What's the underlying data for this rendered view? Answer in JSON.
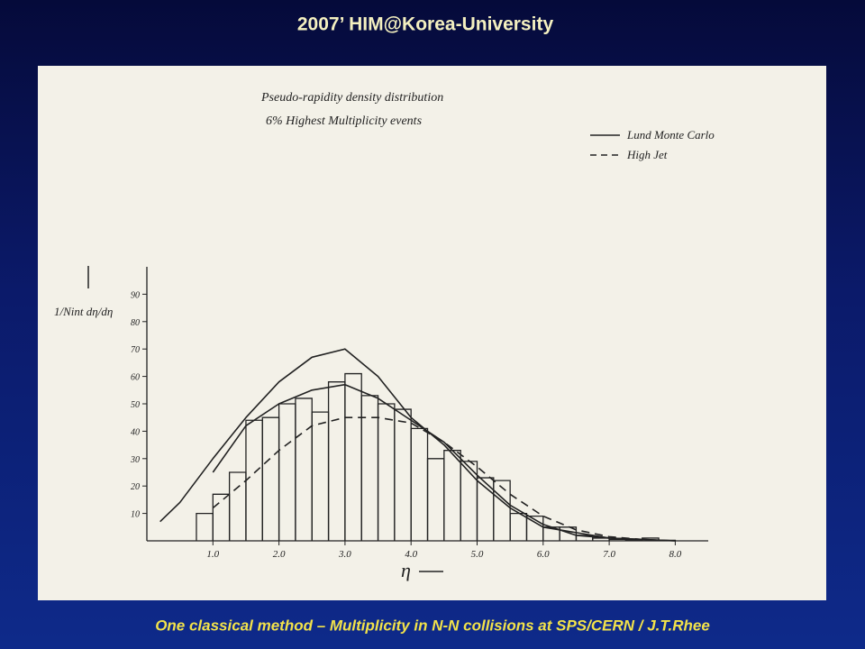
{
  "header": {
    "title": "2007’ HIM@Korea-University"
  },
  "footer": {
    "caption": "One classical method – Multiplicity in N-N collisions at SPS/CERN / J.T.Rhee"
  },
  "chart_data": {
    "type": "line",
    "title": "Pseudo-rapidity density distribution",
    "subtitle": "6% Highest Multiplicity events",
    "x_label": "η",
    "y_label": "1/Nint dη/dη",
    "x": [
      0.2,
      0.5,
      1,
      1.5,
      2,
      2.5,
      3,
      3.5,
      4,
      4.5,
      5,
      5.5,
      6,
      6.5,
      7,
      7.5,
      8
    ],
    "series": [
      {
        "color": "#222",
        "dash": false,
        "values": [
          7,
          14,
          30,
          45,
          58,
          67,
          70,
          60,
          45,
          35,
          22,
          12,
          5,
          3,
          1,
          0.5,
          0
        ]
      },
      {
        "name": "Lund Monte Carlo",
        "color": "#222",
        "dash": false,
        "values": [
          null,
          null,
          25,
          42,
          50,
          55,
          57,
          52,
          44,
          36,
          24,
          13,
          6,
          2,
          1,
          0.5,
          0
        ]
      },
      {
        "name": "High Jet",
        "color": "#222",
        "dash": true,
        "values": [
          null,
          null,
          12,
          22,
          33,
          42,
          45,
          45,
          43,
          36,
          27,
          17,
          9,
          4,
          1.5,
          0.5,
          null
        ]
      }
    ],
    "histogram": {
      "bins": [
        0.75,
        1,
        1.25,
        1.5,
        1.75,
        2,
        2.25,
        2.5,
        2.75,
        3,
        3.25,
        3.5,
        3.75,
        4,
        4.25,
        4.5,
        4.75,
        5,
        5.25,
        5.5,
        5.75,
        6,
        6.25,
        6.5,
        6.75,
        7,
        7.25,
        7.5,
        7.75,
        8
      ],
      "counts": [
        10,
        17,
        25,
        44,
        45,
        50,
        52,
        47,
        58,
        61,
        53,
        50,
        48,
        41,
        30,
        33,
        29,
        23,
        22,
        10,
        9,
        5,
        5,
        2,
        1,
        0.5,
        0.3,
        1,
        0.2
      ],
      "color": "#222"
    },
    "xlim": [
      0,
      8.5
    ],
    "xticks": [
      {
        "value": 1,
        "label": "1.0"
      },
      {
        "value": 2,
        "label": "2.0"
      },
      {
        "value": 3,
        "label": "3.0"
      },
      {
        "value": 4,
        "label": "4.0"
      },
      {
        "value": 5,
        "label": "5.0"
      },
      {
        "value": 6,
        "label": "6.0"
      },
      {
        "value": 7,
        "label": "7.0"
      },
      {
        "value": 8,
        "label": "8.0"
      }
    ],
    "ylim": [
      0,
      100
    ],
    "yticks": [
      10,
      20,
      30,
      40,
      50,
      60,
      70,
      80,
      90
    ],
    "legend": "top-right"
  }
}
